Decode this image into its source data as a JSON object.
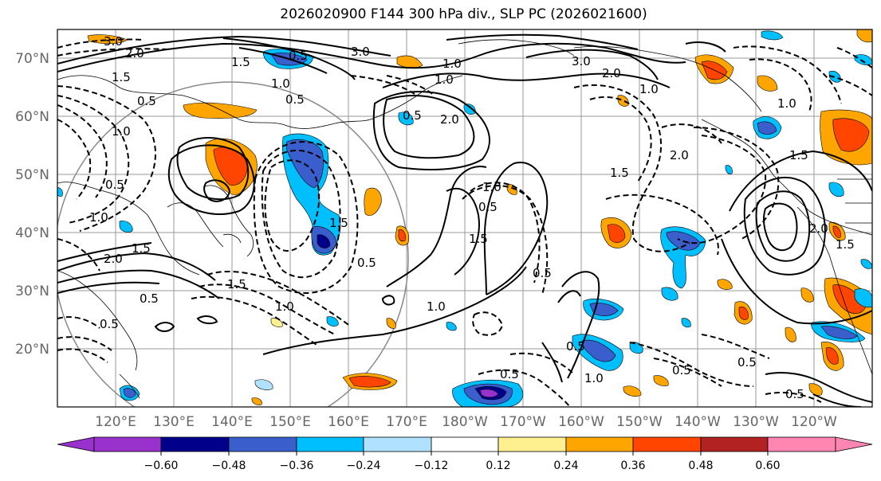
{
  "title": "2026020900 F144 300 hPa div., SLP PC (2026021600)",
  "lat_labels": [
    "70°N",
    "60°N",
    "50°N",
    "40°N",
    "30°N",
    "20°N"
  ],
  "lon_labels": [
    "120°E",
    "130°E",
    "140°E",
    "150°E",
    "160°E",
    "170°E",
    "180°W",
    "170°W",
    "160°W",
    "150°W",
    "140°W",
    "130°W",
    "120°W"
  ],
  "colorbar": {
    "tick_labels": [
      "−0.60",
      "−0.48",
      "−0.36",
      "−0.24",
      "−0.12",
      "0.12",
      "0.24",
      "0.36",
      "0.48",
      "0.60"
    ],
    "colors": [
      "#9932cc",
      "#00008b",
      "#3a5fcd",
      "#00bfff",
      "#b0e2ff",
      "#ffffff",
      "#fff08f",
      "#ffa500",
      "#ff4500",
      "#b22222",
      "#ff86b0"
    ]
  },
  "contour_labels": [
    "3.0",
    "2.0",
    "1.5",
    "0.5",
    "1.0",
    "0.5",
    "1.0",
    "1.5",
    "2.0",
    "3.0",
    "1.0",
    "0.5",
    "1.5",
    "0.5",
    "1.0",
    "0.5",
    "2.0",
    "1.0",
    "3.0",
    "2.0",
    "1.0",
    "1.5",
    "0.5",
    "2.0",
    "1.5",
    "0.5",
    "1.0",
    "1.5",
    "0.5",
    "1.0",
    "0.5",
    "0.5",
    "0.5",
    "0.5",
    "1.0",
    "0.5",
    "1.5",
    "1.0",
    "0.5",
    "1.5",
    "2.0",
    "1.5",
    "0.5",
    "1.0"
  ]
}
